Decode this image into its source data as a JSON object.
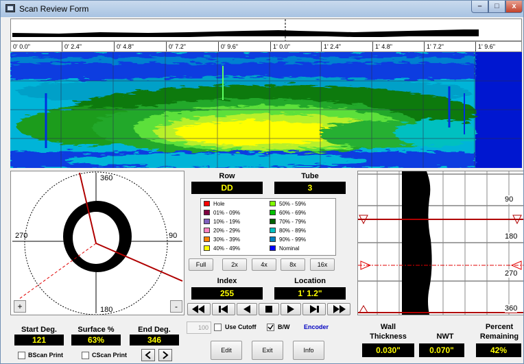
{
  "window": {
    "title": "Scan Review Form",
    "min": "–",
    "max": "□",
    "close": "x"
  },
  "ruler": {
    "ticks": [
      "0' 0.0\"",
      "0' 2.4\"",
      "0' 4.8\"",
      "0' 7.2\"",
      "0' 9.6\"",
      "1' 0.0\"",
      "1' 2.4\"",
      "1' 4.8\"",
      "1' 7.2\"",
      "1' 9.6\""
    ]
  },
  "polar": {
    "label_360": "360",
    "label_270": "270",
    "label_90": "90",
    "label_180": "180",
    "plus": "+",
    "minus": "-"
  },
  "row": {
    "label": "Row",
    "value": "DD"
  },
  "tube": {
    "label": "Tube",
    "value": "3"
  },
  "legend": [
    {
      "label": "Hole",
      "color": "#ff0000"
    },
    {
      "label": "01% - 09%",
      "color": "#800040"
    },
    {
      "label": "10% - 19%",
      "color": "#8060c0"
    },
    {
      "label": "20% - 29%",
      "color": "#ff80c0"
    },
    {
      "label": "30% - 39%",
      "color": "#ff8000"
    },
    {
      "label": "40% - 49%",
      "color": "#ffff00"
    },
    {
      "label": "50% - 59%",
      "color": "#80ff00"
    },
    {
      "label": "60% - 69%",
      "color": "#00c000"
    },
    {
      "label": "70% - 79%",
      "color": "#006000"
    },
    {
      "label": "80% - 89%",
      "color": "#00c0c0"
    },
    {
      "label": "90% - 99%",
      "color": "#0080c0"
    },
    {
      "label": "Nominal",
      "color": "#0000ff"
    }
  ],
  "zoom": [
    "Full",
    "2x",
    "4x",
    "8x",
    "16x"
  ],
  "index": {
    "label": "Index",
    "value": "255"
  },
  "location": {
    "label": "Location",
    "value": "1' 1.2\""
  },
  "bscan": {
    "label_90": "90",
    "label_180": "180",
    "label_270": "270",
    "label_360": "360"
  },
  "start_deg": {
    "label": "Start Deg.",
    "value": "121"
  },
  "surface": {
    "label": "Surface %",
    "value": "63%"
  },
  "end_deg": {
    "label": "End Deg.",
    "value": "346"
  },
  "cutoff": {
    "value": "100",
    "label": "Use Cutoff"
  },
  "bw": {
    "label": "B/W",
    "checked": true
  },
  "encoder": "Encoder",
  "bscan_print": "BScan Print",
  "cscan_print": "CScan Print",
  "buttons": {
    "edit": "Edit",
    "exit": "Exit",
    "info": "Info"
  },
  "wall": {
    "label1": "Wall",
    "label2": "Thickness",
    "value": "0.030\""
  },
  "nwt": {
    "label": "NWT",
    "value": "0.070\""
  },
  "percent": {
    "label1": "Percent",
    "label2": "Remaining",
    "value": "42%"
  }
}
